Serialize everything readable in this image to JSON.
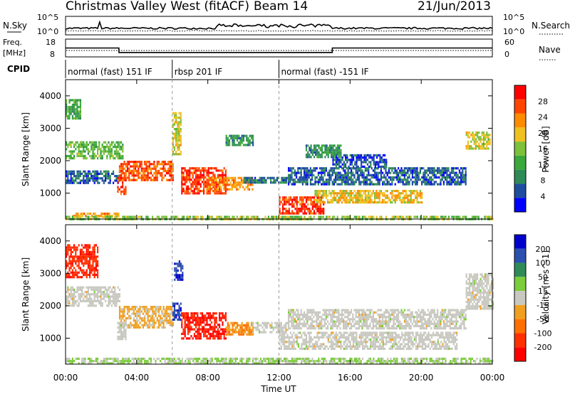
{
  "header": {
    "title": "Christmas Valley West (fitACF)",
    "beam": "Beam 14",
    "date": "21/Jun/2013"
  },
  "noise_panel": {
    "left_label": "N.Sky",
    "right_label": "N.Search",
    "left_ticks": [
      "10^5",
      "10^0"
    ],
    "right_ticks": [
      "10^5",
      "10^0"
    ]
  },
  "freq_panel": {
    "left_label_1": "Freq.",
    "left_label_2": "[MHz]",
    "left_ticks": [
      "18",
      "8"
    ],
    "right_ticks": [
      "60",
      "0"
    ],
    "right_label": "Nave",
    "steps": [
      {
        "start_h": 0.0,
        "end_h": 3.0,
        "freq": 13
      },
      {
        "start_h": 3.0,
        "end_h": 15.0,
        "freq": 10.5
      },
      {
        "start_h": 15.0,
        "end_h": 24.0,
        "freq": 13
      }
    ]
  },
  "cpid": {
    "label": "CPID",
    "segments": [
      {
        "start_h": 0.0,
        "end_h": 6.0,
        "text": "normal (fast) 151 IF"
      },
      {
        "start_h": 6.0,
        "end_h": 12.0,
        "text": "rbsp 201 IF"
      },
      {
        "start_h": 12.0,
        "end_h": 24.0,
        "text": "normal (fast) -151 IF"
      }
    ]
  },
  "x_axis": {
    "label": "Time UT",
    "ticks": [
      "00:00",
      "04:00",
      "08:00",
      "12:00",
      "16:00",
      "20:00",
      "00:00"
    ]
  },
  "colors": {
    "power": [
      "#0000ff",
      "#1e4ea0",
      "#2e8b57",
      "#3aa83a",
      "#7dc03a",
      "#f0c020",
      "#ff8c00",
      "#ff4500",
      "#ff0000"
    ],
    "velocity": [
      "#0000cd",
      "#2b50b0",
      "#2e8b57",
      "#7ccd3a",
      "#c8c8c0",
      "#f0a020",
      "#ff7000",
      "#ff3000",
      "#ff0000"
    ]
  },
  "chart_data": [
    {
      "type": "heatmap",
      "name": "power",
      "ylabel": "Slant Range [km]",
      "yticks": [
        "1000",
        "2000",
        "3000",
        "4000"
      ],
      "ylim": [
        200,
        4500
      ],
      "xlim_hours": [
        0,
        24
      ],
      "colorbar_label": "Power [dB]",
      "colorbar_ticks": [
        "4",
        "8",
        "12",
        "16",
        "20",
        "24",
        "28"
      ],
      "colorbar_range": [
        0,
        32
      ],
      "echo_regions": [
        {
          "t0": 0.0,
          "t1": 0.8,
          "r0": 3300,
          "r1": 3900,
          "value": 12
        },
        {
          "t0": 0.0,
          "t1": 3.2,
          "r0": 2100,
          "r1": 2600,
          "value": 14
        },
        {
          "t0": 0.0,
          "t1": 3.0,
          "r0": 1300,
          "r1": 1700,
          "value": 6
        },
        {
          "t0": 0.3,
          "t1": 3.0,
          "r0": 280,
          "r1": 400,
          "value": 22
        },
        {
          "t0": 3.0,
          "t1": 6.0,
          "r0": 1400,
          "r1": 2000,
          "value": 26
        },
        {
          "t0": 2.9,
          "t1": 3.4,
          "r0": 1000,
          "r1": 1500,
          "value": 27
        },
        {
          "t0": 6.0,
          "t1": 6.5,
          "r0": 2200,
          "r1": 3500,
          "value": 18
        },
        {
          "t0": 6.5,
          "t1": 9.0,
          "r0": 1000,
          "r1": 1800,
          "value": 28
        },
        {
          "t0": 8.0,
          "t1": 10.5,
          "r0": 1100,
          "r1": 1500,
          "value": 23
        },
        {
          "t0": 9.0,
          "t1": 10.5,
          "r0": 2500,
          "r1": 2800,
          "value": 10
        },
        {
          "t0": 10.0,
          "t1": 12.5,
          "r0": 1300,
          "r1": 1500,
          "value": 7
        },
        {
          "t0": 12.0,
          "t1": 14.5,
          "r0": 400,
          "r1": 900,
          "value": 28
        },
        {
          "t0": 14.0,
          "t1": 20.0,
          "r0": 700,
          "r1": 1100,
          "value": 20
        },
        {
          "t0": 12.5,
          "t1": 22.5,
          "r0": 1300,
          "r1": 1800,
          "value": 6
        },
        {
          "t0": 13.5,
          "t1": 15.5,
          "r0": 2100,
          "r1": 2500,
          "value": 10
        },
        {
          "t0": 15.0,
          "t1": 18.0,
          "r0": 1800,
          "r1": 2200,
          "value": 5
        },
        {
          "t0": 22.5,
          "t1": 23.9,
          "r0": 2400,
          "r1": 2900,
          "value": 18
        },
        {
          "t0": 0.0,
          "t1": 24.0,
          "r0": 200,
          "r1": 300,
          "value": 16
        }
      ]
    },
    {
      "type": "heatmap",
      "name": "velocity",
      "ylabel": "Slant Range [km]",
      "yticks": [
        "1000",
        "2000",
        "3000",
        "4000"
      ],
      "ylim": [
        200,
        4500
      ],
      "xlim_hours": [
        0,
        24
      ],
      "colorbar_label": "Velocity [m s^-1]",
      "colorbar_ticks": [
        "200",
        "100",
        "50",
        "15",
        "-15",
        "-50",
        "-100",
        "-200"
      ],
      "colorbar_range": [
        -250,
        250
      ],
      "echo_regions": [
        {
          "t0": 0.0,
          "t1": 1.8,
          "r0": 2900,
          "r1": 3900,
          "value": -180
        },
        {
          "t0": 0.0,
          "t1": 3.0,
          "r0": 2000,
          "r1": 2600,
          "value": 0
        },
        {
          "t0": 3.0,
          "t1": 6.0,
          "r0": 1300,
          "r1": 2000,
          "value": -40
        },
        {
          "t0": 2.9,
          "t1": 3.4,
          "r0": 1000,
          "r1": 1500,
          "value": 0
        },
        {
          "t0": 6.0,
          "t1": 6.5,
          "r0": 1600,
          "r1": 2100,
          "value": 180
        },
        {
          "t0": 6.1,
          "t1": 6.6,
          "r0": 2800,
          "r1": 3400,
          "value": 180
        },
        {
          "t0": 6.5,
          "t1": 9.0,
          "r0": 1000,
          "r1": 1800,
          "value": -200
        },
        {
          "t0": 9.0,
          "t1": 10.5,
          "r0": 1100,
          "r1": 1500,
          "value": -80
        },
        {
          "t0": 10.5,
          "t1": 12.5,
          "r0": 1200,
          "r1": 1500,
          "value": 0
        },
        {
          "t0": 12.0,
          "t1": 22.0,
          "r0": 700,
          "r1": 1200,
          "value": 0
        },
        {
          "t0": 12.5,
          "t1": 22.5,
          "r0": 1300,
          "r1": 1900,
          "value": 0
        },
        {
          "t0": 22.5,
          "t1": 24.0,
          "r0": 1900,
          "r1": 3000,
          "value": 0
        },
        {
          "t0": 0.0,
          "t1": 24.0,
          "r0": 200,
          "r1": 400,
          "value": 30
        }
      ]
    }
  ]
}
